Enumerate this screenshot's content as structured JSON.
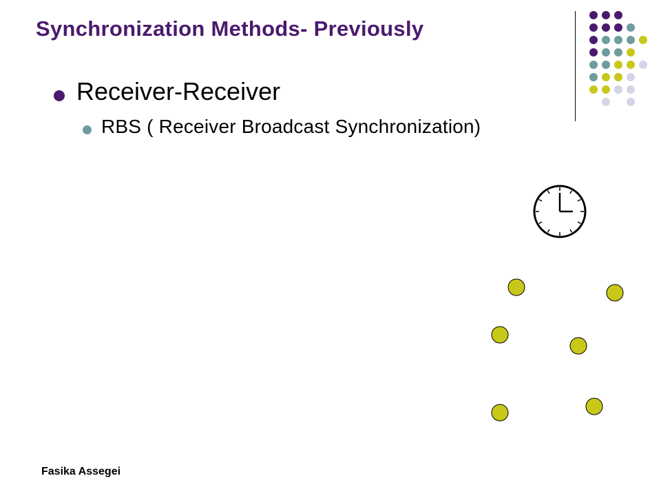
{
  "slide": {
    "title": "Synchronization Methods- Previously",
    "bullets": {
      "level1": "Receiver-Receiver",
      "level2": "RBS ( Receiver Broadcast Synchronization)"
    },
    "footer": "Fasika Assegei"
  },
  "colors": {
    "title": "#4b1a6e",
    "bullet_level1": "#4b1a6e",
    "bullet_level2": "#6f9c9e",
    "purple": "#4b1a6e",
    "teal": "#6f9c9e",
    "olive": "#c8c81a",
    "lavender": "#d4d4e8",
    "node_fill": "#c8c81a",
    "node_stroke": "#000000"
  },
  "icons": {
    "clock": "clock-icon",
    "nodes": "receiver-node-icon"
  },
  "diagram": {
    "clock_time": "3:00",
    "receiver_node_count": 6
  }
}
